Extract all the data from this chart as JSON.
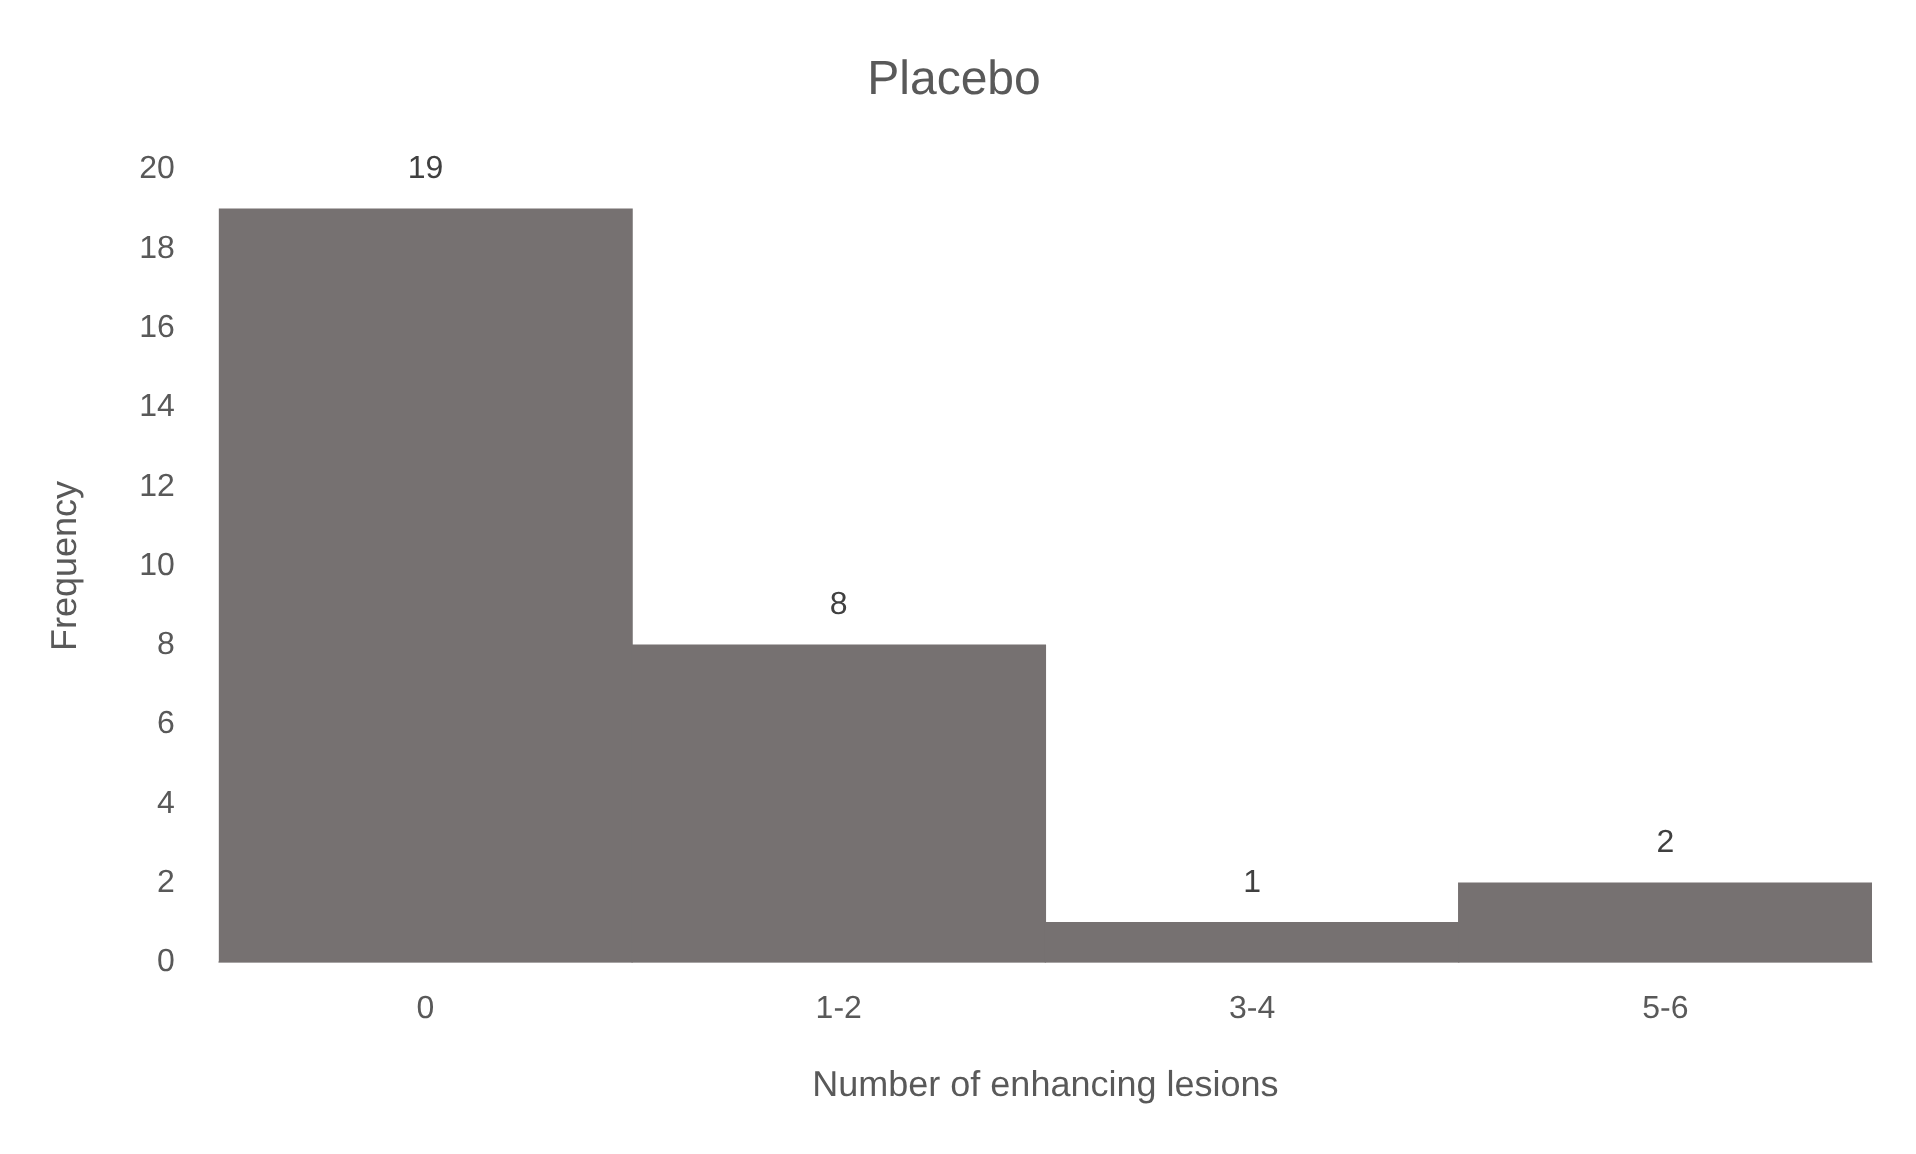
{
  "chart_data": {
    "type": "bar",
    "title": "Placebo",
    "xlabel": "Number of enhancing lesions",
    "ylabel": "Frequency",
    "categories": [
      "0",
      "1-2",
      "3-4",
      "5-6"
    ],
    "values": [
      19,
      8,
      1,
      2
    ],
    "color": "#767171",
    "ylim": [
      0,
      20
    ],
    "yticks": [
      0,
      2,
      4,
      6,
      8,
      10,
      12,
      14,
      16,
      18,
      20
    ],
    "grid": false,
    "legend": false,
    "data_labels": true
  }
}
